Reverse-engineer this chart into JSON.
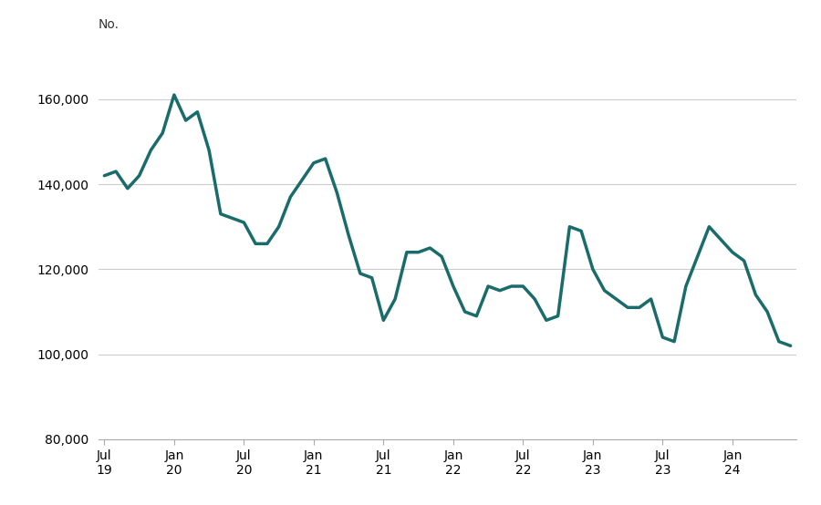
{
  "line_color": "#1a6b6b",
  "line_width": 2.5,
  "background_color": "#ffffff",
  "ylabel": "No.",
  "ylim": [
    80000,
    175000
  ],
  "yticks": [
    80000,
    100000,
    120000,
    140000,
    160000
  ],
  "grid_color": "#cccccc",
  "values": [
    142000,
    143000,
    139000,
    142000,
    148000,
    152000,
    161000,
    155000,
    157000,
    148000,
    133000,
    132000,
    131000,
    126000,
    126000,
    130000,
    137000,
    141000,
    145000,
    146000,
    138000,
    128000,
    119000,
    118000,
    108000,
    113000,
    124000,
    124000,
    125000,
    123000,
    116000,
    110000,
    109000,
    116000,
    115000,
    116000,
    116000,
    113000,
    108000,
    109000,
    130000,
    129000,
    120000,
    115000,
    113000,
    111000,
    111000,
    113000,
    104000,
    103000,
    116000,
    123000,
    130000,
    127000,
    124000,
    122000,
    114000,
    110000,
    103000,
    102000
  ],
  "xtick_positions": [
    0,
    6,
    12,
    18,
    24,
    30,
    36,
    42,
    48,
    54
  ],
  "xtick_labels": [
    "Jul\n19",
    "Jan\n20",
    "Jul\n20",
    "Jan\n21",
    "Jul\n21",
    "Jan\n22",
    "Jul\n22",
    "Jan\n23",
    "Jul\n23",
    "Jan\n24"
  ]
}
